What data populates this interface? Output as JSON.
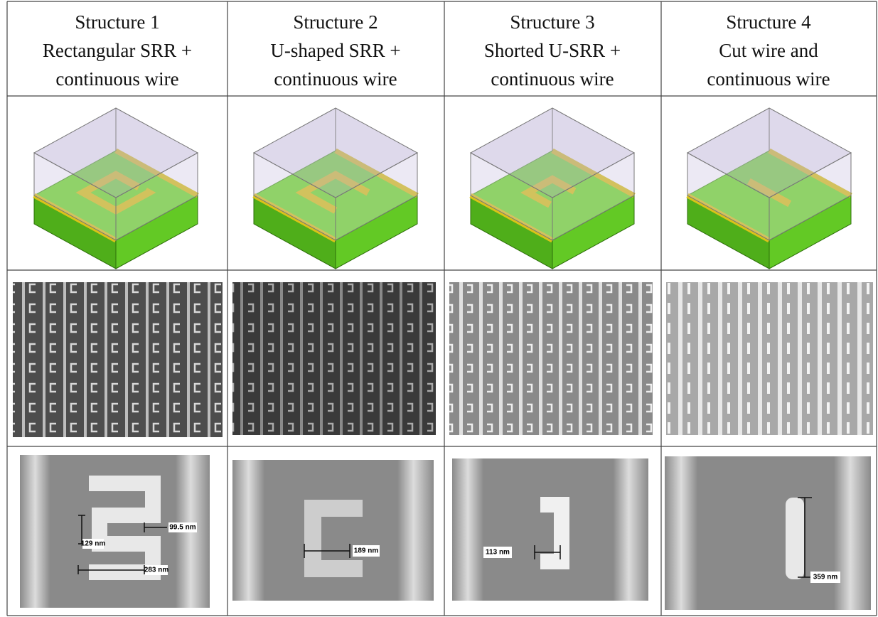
{
  "table": {
    "columns": [
      {
        "lines": [
          "Structure 1",
          "Rectangular SRR +",
          "continuous wire"
        ],
        "measurements": [
          "129 nm",
          "99.5 nm",
          "283 nm"
        ]
      },
      {
        "lines": [
          "Structure 2",
          "U-shaped SRR +",
          "continuous wire"
        ],
        "measurements": [
          "189 nm"
        ]
      },
      {
        "lines": [
          "Structure 3",
          "Shorted U-SRR +",
          "continuous wire"
        ],
        "measurements": [
          "113 nm"
        ]
      },
      {
        "lines": [
          "Structure 4",
          "Cut wire and",
          "continuous wire"
        ],
        "measurements": [
          "359 nm"
        ]
      }
    ]
  }
}
